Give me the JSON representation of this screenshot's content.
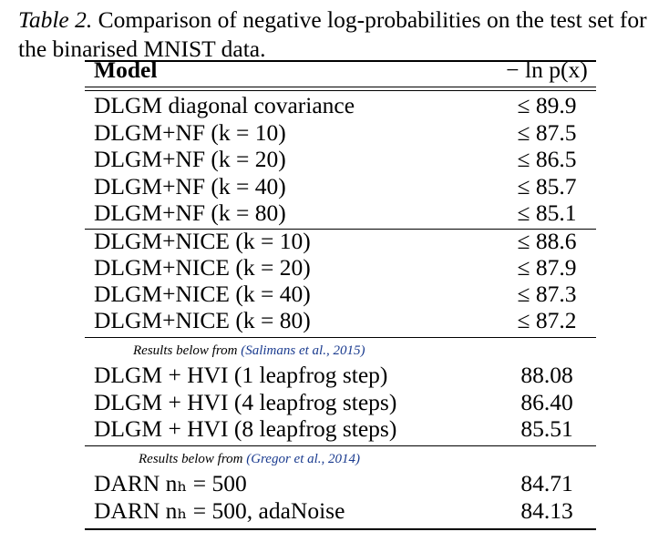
{
  "caption": {
    "label": "Table 2.",
    "text": "Comparison of negative log-probabilities on the test set for the binarised MNIST data."
  },
  "header": {
    "model": "Model",
    "metric": "− ln p(x)"
  },
  "group_nf": [
    {
      "model": "DLGM diagonal covariance",
      "value": "≤ 89.9"
    },
    {
      "model": "DLGM+NF (k = 10)",
      "value": "≤ 87.5"
    },
    {
      "model": "DLGM+NF (k = 20)",
      "value": "≤ 86.5"
    },
    {
      "model": "DLGM+NF (k = 40)",
      "value": "≤ 85.7"
    },
    {
      "model": "DLGM+NF (k = 80)",
      "value": "≤ 85.1"
    }
  ],
  "group_nice": [
    {
      "model": "DLGM+NICE (k = 10)",
      "value": "≤ 88.6"
    },
    {
      "model": "DLGM+NICE (k = 20)",
      "value": "≤ 87.9"
    },
    {
      "model": "DLGM+NICE (k = 40)",
      "value": "≤ 87.3"
    },
    {
      "model": "DLGM+NICE (k = 80)",
      "value": "≤ 87.2"
    }
  ],
  "note_salimans": {
    "prefix": "Results below from",
    "cite": "(Salimans et al., 2015)"
  },
  "group_hvi": [
    {
      "model": "DLGM + HVI (1 leapfrog step)",
      "value": "88.08"
    },
    {
      "model": "DLGM + HVI (4 leapfrog steps)",
      "value": "86.40"
    },
    {
      "model": "DLGM + HVI (8 leapfrog steps)",
      "value": "85.51"
    }
  ],
  "note_gregor": {
    "prefix": "Results below from",
    "cite": "(Gregor et al., 2014)"
  },
  "group_darn": [
    {
      "model": "DARN nₕ = 500",
      "value": "84.71"
    },
    {
      "model": "DARN nₕ = 500, adaNoise",
      "value": "84.13"
    }
  ]
}
